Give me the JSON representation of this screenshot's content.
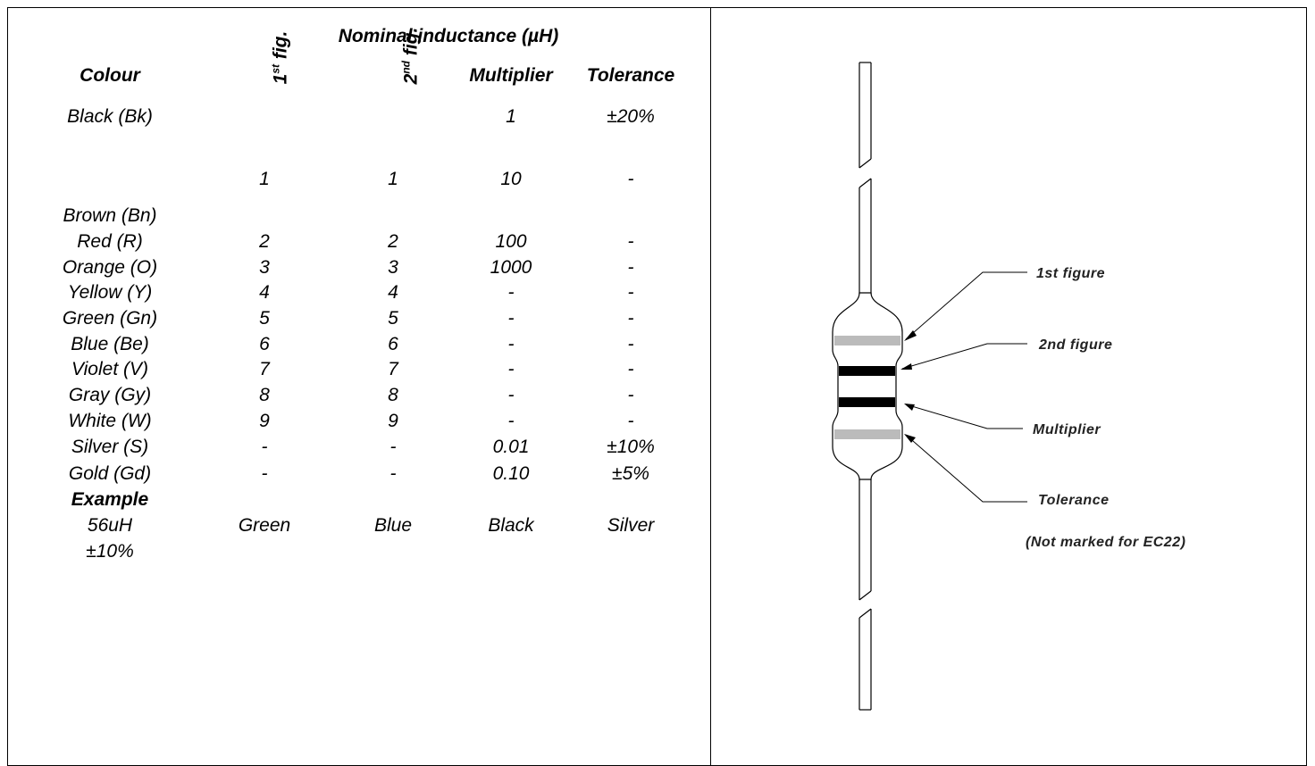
{
  "table": {
    "caption": "Nominal inductance (µH)",
    "headers": [
      "Colour",
      {
        "base": "1",
        "sup": "st",
        "text": "fig."
      },
      {
        "base": "2",
        "sup": "nd",
        "text": "fig."
      },
      "Multiplier",
      "Tolerance"
    ],
    "rows": [
      [
        "Black (Bk)",
        null,
        null,
        "1",
        "±20%"
      ],
      [
        null,
        "1",
        "1",
        "10",
        "-"
      ],
      [
        "Brown (Bn)",
        null,
        null,
        null,
        null
      ],
      [
        "Red (R)",
        "2",
        "2",
        "100",
        "-"
      ],
      [
        "Orange (O)",
        "3",
        "3",
        "1000",
        "-"
      ],
      [
        "Yellow (Y)",
        "4",
        "4",
        "-",
        "-"
      ],
      [
        "Green (Gn)",
        "5",
        "5",
        "-",
        "-"
      ],
      [
        "Blue (Be)",
        "6",
        "6",
        "-",
        "-"
      ],
      [
        "Violet (V)",
        "7",
        "7",
        "-",
        "-"
      ],
      [
        "Gray (Gy)",
        "8",
        "8",
        "-",
        "-"
      ],
      [
        "White (W)",
        "9",
        "9",
        "-",
        "-"
      ],
      [
        "Silver (S)",
        "-",
        "-",
        "0.01",
        "±10%"
      ],
      [
        "Gold (Gd)",
        "-",
        "-",
        "0.10",
        "±5%"
      ],
      [
        "Example",
        null,
        null,
        null,
        null
      ],
      [
        "56uH ±10%",
        "Green",
        "Blue",
        "Black",
        "Silver"
      ]
    ]
  },
  "diagram": {
    "labels": [
      "1st figure",
      "2nd figure",
      "Multiplier",
      "Tolerance",
      "(Not marked for EC22)"
    ]
  }
}
